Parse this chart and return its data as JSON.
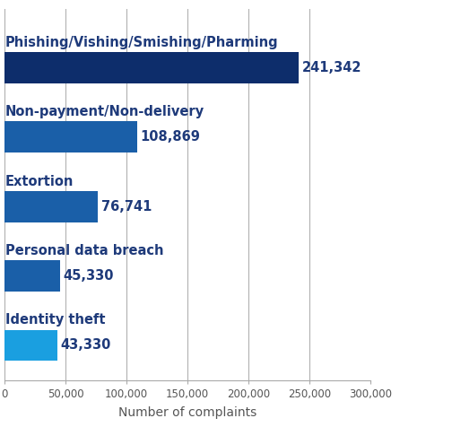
{
  "categories": [
    "Identity theft",
    "Personal data breach",
    "Extortion",
    "Non-payment/Non-delivery",
    "Phishing/Vishing/Smishing/Pharming"
  ],
  "values": [
    43330,
    45330,
    76741,
    108869,
    241342
  ],
  "bar_colors": [
    "#1a9fe0",
    "#1a5fa8",
    "#1a5fa8",
    "#1a5fa8",
    "#0d2d6b"
  ],
  "value_labels": [
    "43,330",
    "45,330",
    "76,741",
    "108,869",
    "241,342"
  ],
  "xlabel": "Number of complaints",
  "xlim": [
    0,
    300000
  ],
  "xticks": [
    0,
    50000,
    100000,
    150000,
    200000,
    250000,
    300000
  ],
  "xtick_labels": [
    "0",
    "50,000",
    "100,000",
    "150,000",
    "200,000",
    "250,000",
    "300,000"
  ],
  "background_color": "#ffffff",
  "grid_color": "#aaaaaa",
  "bar_height": 0.45,
  "label_color": "#1e3a7a",
  "value_color": "#1e3a7a",
  "label_fontsize": 10.5,
  "value_fontsize": 10.5,
  "xlabel_fontsize": 10,
  "tick_fontsize": 8.5
}
